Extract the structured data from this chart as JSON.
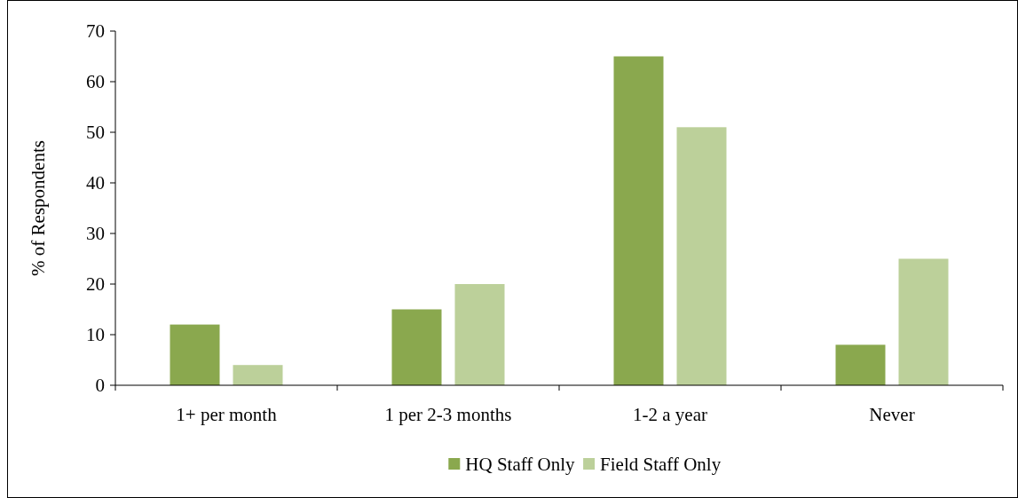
{
  "chart_data": {
    "type": "bar",
    "ylabel": "% of Respondents",
    "categories": [
      "1+ per month",
      "1 per 2-3 months",
      "1-2 a year",
      "Never"
    ],
    "series": [
      {
        "name": "HQ Staff Only",
        "color": "#8aa84e",
        "values": [
          12,
          15,
          65,
          8
        ]
      },
      {
        "name": "Field Staff Only",
        "color": "#bcd09a",
        "values": [
          4,
          20,
          51,
          25
        ]
      }
    ],
    "ylim": [
      0,
      70
    ],
    "yticks": [
      0,
      10,
      20,
      30,
      40,
      50,
      60,
      70
    ],
    "grid": false,
    "legend": "bottom"
  }
}
